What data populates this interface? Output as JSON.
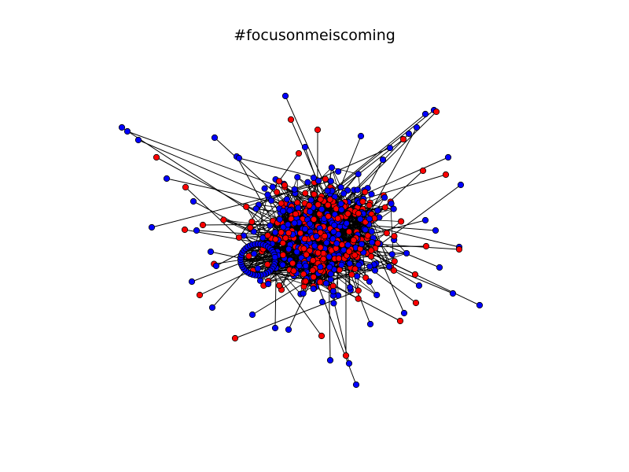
{
  "figure": {
    "title": "#focusonmeiscoming"
  },
  "graph": {
    "node_colors": {
      "group_a": "#ff0000",
      "group_b": "#0000ff"
    },
    "edge_color": "#000000",
    "node_outline": "#000000"
  }
}
